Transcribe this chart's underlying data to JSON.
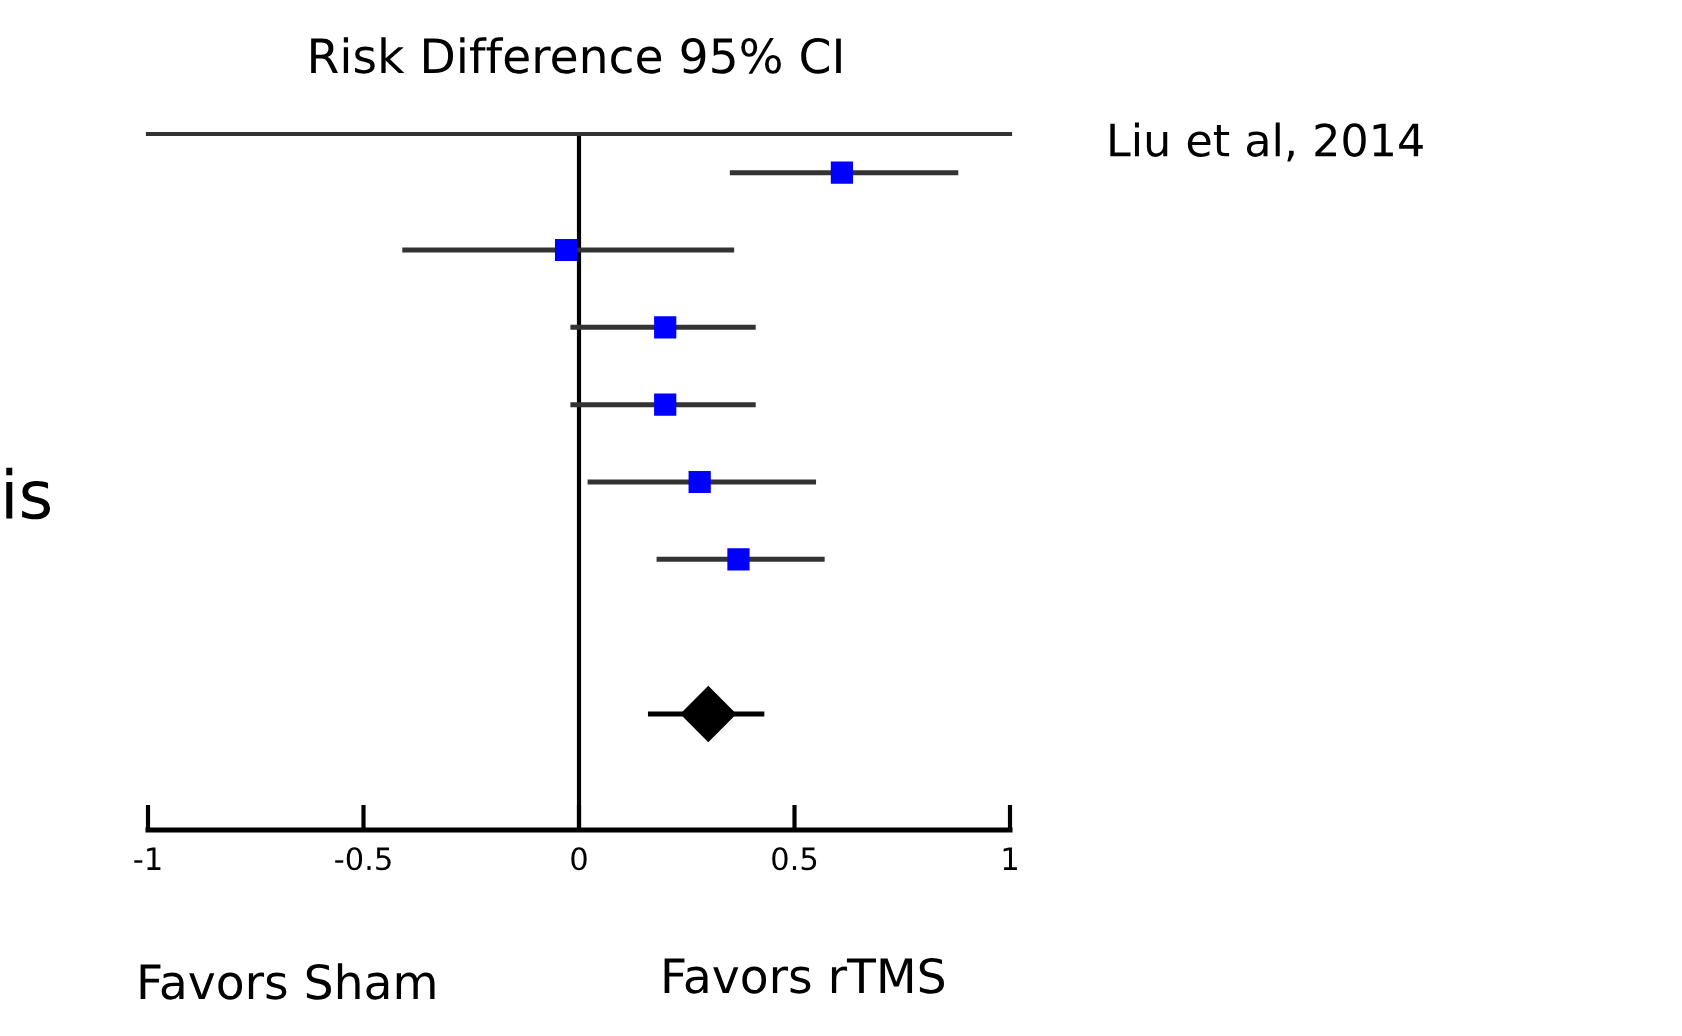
{
  "chart_data": {
    "type": "scatter",
    "title": "Risk Difference 95% CI",
    "orientation": "horizontal",
    "categories": [
      null,
      null,
      null,
      null,
      null,
      null,
      null,
      null,
      null
    ],
    "series": [
      {
        "marker": "square",
        "color": "#0000ff",
        "values": [
          0.61,
          -0.03,
          0.2,
          0.2,
          0.28,
          0.37,
          null,
          null,
          null
        ],
        "errors": [
          [
            0.35,
            0.88
          ],
          [
            -0.41,
            0.36
          ],
          [
            -0.02,
            0.41
          ],
          [
            -0.02,
            0.41
          ],
          [
            0.02,
            0.55
          ],
          [
            0.18,
            0.57
          ],
          null,
          null,
          null
        ]
      },
      {
        "marker": "diamond",
        "color": "#000000",
        "values": [
          null,
          null,
          null,
          null,
          null,
          null,
          null,
          0.3,
          null
        ],
        "errors": [
          null,
          null,
          null,
          null,
          null,
          null,
          null,
          [
            0.16,
            0.43
          ],
          null
        ]
      }
    ],
    "xlim": [
      -1,
      1
    ],
    "xticks": [
      -1,
      -0.5,
      0,
      0.5,
      1
    ],
    "ref_lines": [
      {
        "axis": "x",
        "value": 0,
        "color": "#000000"
      }
    ],
    "annotations": [
      "Liu et al, 2014",
      "is",
      "Favors Sham",
      "Favors rTMS"
    ],
    "grid": false,
    "legend": false
  }
}
